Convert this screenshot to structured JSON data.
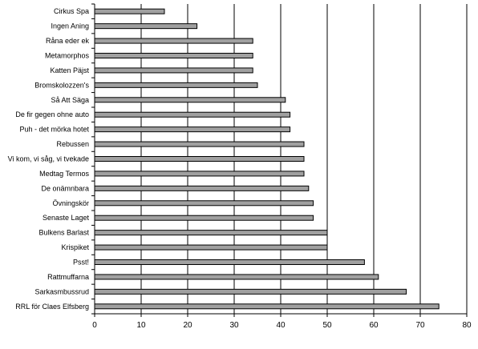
{
  "chart_data": {
    "type": "bar",
    "orientation": "horizontal",
    "categories": [
      "Cirkus Spa",
      "Ingen Aning",
      "Råna eder ek",
      "Metamorphos",
      "Katten Päjst",
      "Bromskolozzen's",
      "Så Att Säga",
      "De fir gegen ohne auto",
      "Puh - det mörka hotet",
      "Rebussen",
      "Vi kom, vi såg, vi tvekade",
      "Medtag Termos",
      "De onämnbara",
      "Övningskör",
      "Senaste Laget",
      "Bulkens Barlast",
      "Krispiket",
      "Psst!",
      "Rattmuffarna",
      "Sarkasmbussrud",
      "RRL för Claes Elfsberg"
    ],
    "values": [
      15,
      22,
      34,
      34,
      34,
      35,
      41,
      42,
      42,
      45,
      45,
      45,
      46,
      47,
      47,
      50,
      50,
      58,
      61,
      67,
      74
    ],
    "xlim": [
      0,
      80
    ],
    "xticks": [
      "0",
      "10",
      "20",
      "30",
      "40",
      "50",
      "60",
      "70",
      "80"
    ],
    "xlabel": "",
    "ylabel": "",
    "title": "",
    "grid": "vertical",
    "legend": "none",
    "colors": {
      "bar_fill": "#a0a0a0",
      "bar_stroke": "#000000",
      "grid": "#000000",
      "background": "#ffffff"
    }
  }
}
